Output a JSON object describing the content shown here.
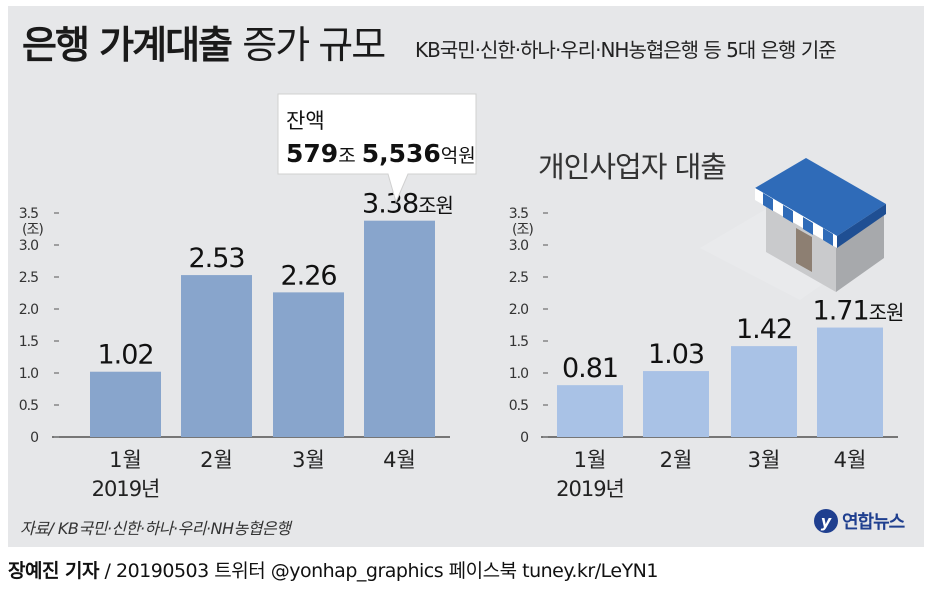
{
  "title": {
    "bold": "은행 가계대출",
    "light": "증가 규모"
  },
  "subtitle": "KB국민·신한·하나·우리·NH농협은행 등 5대 은행 기준",
  "callout": {
    "line1": "잔액",
    "big1": "579",
    "small1": "조 ",
    "big2": "5,536",
    "small2": "억원"
  },
  "right_title": "개인사업자 대출",
  "source": "자료/ KB국민·신한·하나·우리·NH농협은행",
  "footer": {
    "name": "장예진 기자",
    "rest": " / 20190503 트위터 @yonhap_graphics  페이스북 tuney.kr/LeYN1"
  },
  "logo": {
    "mark": "y",
    "name": "연합뉴스"
  },
  "colors": {
    "left_bar": "#88a5cc",
    "right_bar": "#a9c2e6",
    "panel": "#e6e7e9"
  },
  "chart_data": [
    {
      "type": "bar",
      "categories": [
        "1월",
        "2월",
        "3월",
        "4월"
      ],
      "category_sublabel": "2019년",
      "values": [
        1.02,
        2.53,
        2.26,
        3.38
      ],
      "value_labels": [
        "1.02",
        "2.53",
        "2.26",
        "3.38"
      ],
      "unit_suffix": "조원",
      "yunit": "(조)",
      "yticks": [
        "0",
        "0.5",
        "1.0",
        "1.5",
        "2.0",
        "2.5",
        "3.0",
        "3.5"
      ],
      "ylim": [
        0,
        3.5
      ],
      "grid": false
    },
    {
      "type": "bar",
      "title": "개인사업자 대출",
      "categories": [
        "1월",
        "2월",
        "3월",
        "4월"
      ],
      "category_sublabel": "2019년",
      "values": [
        0.81,
        1.03,
        1.42,
        1.71
      ],
      "value_labels": [
        "0.81",
        "1.03",
        "1.42",
        "1.71"
      ],
      "unit_suffix": "조원",
      "yunit": "(조)",
      "yticks": [
        "0",
        "0.5",
        "1.0",
        "1.5",
        "2.0",
        "2.5",
        "3.0",
        "3.5"
      ],
      "ylim": [
        0,
        3.5
      ],
      "grid": false
    }
  ]
}
